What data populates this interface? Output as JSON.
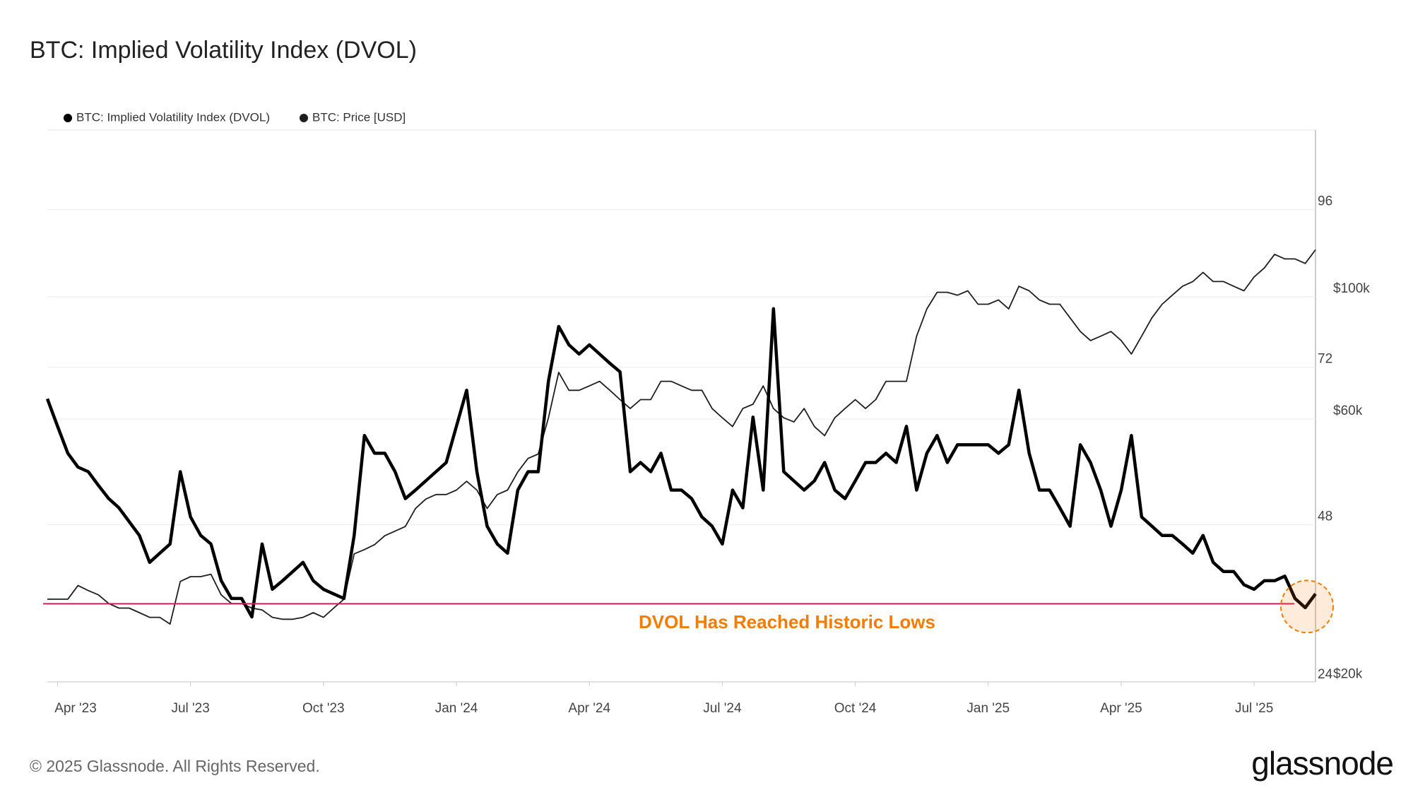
{
  "chart_data": {
    "type": "line",
    "title": "BTC: Implied Volatility Index (DVOL)",
    "categories": [
      null,
      "Apr '23",
      null,
      null,
      null,
      null,
      null,
      null,
      null,
      null,
      null,
      null,
      null,
      null,
      "Jul '23",
      null,
      null,
      null,
      null,
      null,
      null,
      null,
      null,
      null,
      null,
      null,
      null,
      "Oct '23",
      null,
      null,
      null,
      null,
      null,
      null,
      null,
      null,
      null,
      null,
      null,
      null,
      "Jan '24",
      null,
      null,
      null,
      null,
      null,
      null,
      null,
      null,
      null,
      null,
      null,
      null,
      "Apr '24",
      null,
      null,
      null,
      null,
      null,
      null,
      null,
      null,
      null,
      null,
      null,
      null,
      "Jul '24",
      null,
      null,
      null,
      null,
      null,
      null,
      null,
      null,
      null,
      null,
      null,
      null,
      "Oct '24",
      null,
      null,
      null,
      null,
      null,
      null,
      null,
      null,
      null,
      null,
      null,
      null,
      "Jan '25",
      null,
      null,
      null,
      null,
      null,
      null,
      null,
      null,
      null,
      null,
      null,
      null,
      "Apr '25",
      null,
      null,
      null,
      null,
      null,
      null,
      null,
      null,
      null,
      null,
      null,
      null,
      "Jul '25",
      null,
      null,
      null,
      null,
      null,
      null
    ],
    "series": [
      {
        "name": "BTC: Implied Volatility Index (DVOL)",
        "color": "#000000",
        "axis": "y",
        "values": [
          66,
          61.8,
          57.7,
          55.6,
          54.9,
          52.8,
          50.8,
          49.4,
          47.3,
          45.2,
          41.1,
          42.5,
          43.9,
          54.9,
          48,
          45.2,
          43.9,
          38.3,
          35.6,
          35.6,
          32.8,
          43.9,
          37,
          38.3,
          39.7,
          41.1,
          38.3,
          37,
          36.3,
          35.6,
          45.2,
          60.4,
          57.7,
          57.7,
          54.9,
          50.8,
          52.1,
          53.5,
          54.9,
          56.3,
          61.8,
          67.3,
          54.9,
          46.6,
          43.9,
          42.5,
          52.1,
          54.9,
          54.9,
          68.7,
          77,
          74.2,
          72.8,
          74.2,
          72.8,
          71.4,
          70.1,
          54.9,
          56.3,
          54.9,
          57.7,
          52.1,
          52.1,
          50.8,
          48,
          46.6,
          43.9,
          52.1,
          49.4,
          63.2,
          52.1,
          79.7,
          54.9,
          53.5,
          52.1,
          53.5,
          56.3,
          52.1,
          50.8,
          53.5,
          56.3,
          56.3,
          57.7,
          56.3,
          61.8,
          52.1,
          57.7,
          60.4,
          56.3,
          59,
          59,
          59,
          59,
          57.7,
          59,
          67.3,
          57.7,
          52.1,
          52.1,
          49.4,
          46.6,
          59,
          56.3,
          52.1,
          46.6,
          52.1,
          60.4,
          48,
          46.6,
          45.2,
          45.2,
          43.9,
          42.5,
          45.2,
          41.1,
          39.7,
          39.7,
          37.7,
          37,
          38.3,
          38.3,
          39,
          35.6,
          34.2,
          36.3
        ]
      },
      {
        "name": "BTC: Price [USD]",
        "color": "#1e1e1e",
        "axis": "y2",
        "values": [
          27400,
          27400,
          27400,
          29000,
          28400,
          27900,
          26900,
          26400,
          26400,
          25900,
          25400,
          25400,
          24700,
          29500,
          30100,
          30100,
          30400,
          27900,
          26900,
          26900,
          26400,
          26200,
          25400,
          25200,
          25200,
          25400,
          25900,
          25400,
          26400,
          27400,
          33100,
          33700,
          34400,
          35700,
          36400,
          37100,
          40000,
          41600,
          42400,
          42400,
          43200,
          44800,
          43200,
          40000,
          42400,
          43200,
          46600,
          49300,
          50200,
          58400,
          70600,
          65500,
          65500,
          66700,
          68000,
          65500,
          63000,
          60700,
          63000,
          63000,
          68000,
          68000,
          66700,
          65500,
          65500,
          60700,
          58400,
          56300,
          60700,
          61800,
          66700,
          60700,
          58400,
          57400,
          60700,
          56300,
          54200,
          58400,
          60700,
          63000,
          60700,
          63000,
          68000,
          68000,
          68000,
          82100,
          92000,
          98600,
          98600,
          97400,
          99200,
          93800,
          93800,
          95500,
          92000,
          101100,
          99200,
          95500,
          93800,
          93800,
          88600,
          83700,
          80600,
          82100,
          83700,
          80600,
          76200,
          82100,
          88600,
          93800,
          97400,
          101100,
          103100,
          107100,
          103100,
          103100,
          101100,
          99200,
          105100,
          109100,
          115500,
          113300,
          113300,
          111200,
          117700
        ]
      }
    ],
    "ylim": [
      22.9,
      106.9
    ],
    "yticks": [
      24,
      48,
      72,
      96
    ],
    "y2lim": [
      19400,
      194000
    ],
    "y2scale": "log",
    "y2ticks": [
      {
        "value": 20000,
        "label": "$20k"
      },
      {
        "value": 60000,
        "label": "$60k"
      },
      {
        "value": 100000,
        "label": "$100k"
      }
    ],
    "grid": true,
    "legend": "top-left",
    "hline": {
      "value": 34.8,
      "color": "#d81b60"
    },
    "annotation": {
      "text": "DVOL Has Reached Historic Lows",
      "color": "#f57c00"
    }
  },
  "footer": {
    "copyright": "© 2025 Glassnode. All Rights Reserved.",
    "brand": "glassnode"
  }
}
